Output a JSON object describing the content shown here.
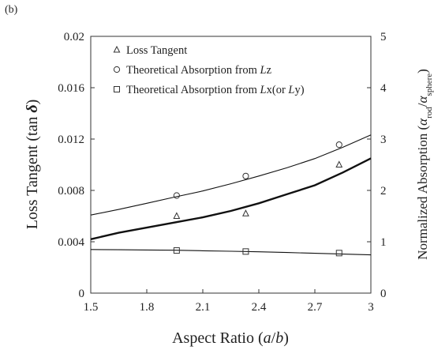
{
  "chart_data": {
    "type": "line",
    "panel_label": "(b)",
    "xlabel": "Aspect Ratio (a/b)",
    "ylabel_left": "Loss Tangent (tan δ)",
    "ylabel_right": "Normalized Absorption (α_rod/α_sphere)",
    "xlim": [
      1.5,
      3.0
    ],
    "ylim_left": [
      0,
      0.02
    ],
    "ylim_right": [
      0,
      5
    ],
    "x_ticks": [
      "1.5",
      "1.8",
      "2.1",
      "2.4",
      "2.7",
      "3"
    ],
    "y_ticks_left": [
      "0",
      "0.004",
      "0.008",
      "0.012",
      "0.016",
      "0.02"
    ],
    "y_ticks_right": [
      "0",
      "1",
      "2",
      "3",
      "4",
      "5"
    ],
    "grid": false,
    "legend_position": "top",
    "series": [
      {
        "name": "Loss Tangent",
        "marker": "triangle",
        "axis": "left",
        "x": [
          1.96,
          2.33,
          2.83
        ],
        "y": [
          0.006,
          0.0062,
          0.01
        ]
      },
      {
        "name": "Theoretical Absorption from Lz",
        "marker": "circle",
        "axis": "right",
        "x": [
          1.96,
          2.33,
          2.83
        ],
        "y": [
          1.9,
          2.28,
          2.89
        ]
      },
      {
        "name": "Theoretical Absorption from Lx(or Ly)",
        "marker": "square",
        "axis": "right",
        "x": [
          1.96,
          2.33,
          2.83
        ],
        "y": [
          0.83,
          0.81,
          0.78
        ]
      }
    ],
    "curves": [
      {
        "style": "bold",
        "axis": "left",
        "x": [
          1.5,
          1.65,
          1.8,
          1.95,
          2.1,
          2.25,
          2.4,
          2.55,
          2.7,
          2.85,
          3.0
        ],
        "y": [
          0.0042,
          0.0047,
          0.0051,
          0.0055,
          0.0059,
          0.0064,
          0.007,
          0.0077,
          0.0084,
          0.0094,
          0.0105
        ]
      },
      {
        "style": "thin",
        "axis": "right",
        "x": [
          1.5,
          1.65,
          1.8,
          1.95,
          2.1,
          2.25,
          2.4,
          2.55,
          2.7,
          2.85,
          3.0
        ],
        "y": [
          1.52,
          1.63,
          1.75,
          1.87,
          1.99,
          2.13,
          2.28,
          2.44,
          2.62,
          2.84,
          3.08
        ]
      },
      {
        "style": "thin",
        "axis": "right",
        "x": [
          1.5,
          1.65,
          1.8,
          1.95,
          2.1,
          2.25,
          2.4,
          2.55,
          2.7,
          2.85,
          3.0
        ],
        "y": [
          0.85,
          0.845,
          0.84,
          0.835,
          0.825,
          0.815,
          0.805,
          0.79,
          0.775,
          0.76,
          0.745
        ]
      }
    ]
  }
}
